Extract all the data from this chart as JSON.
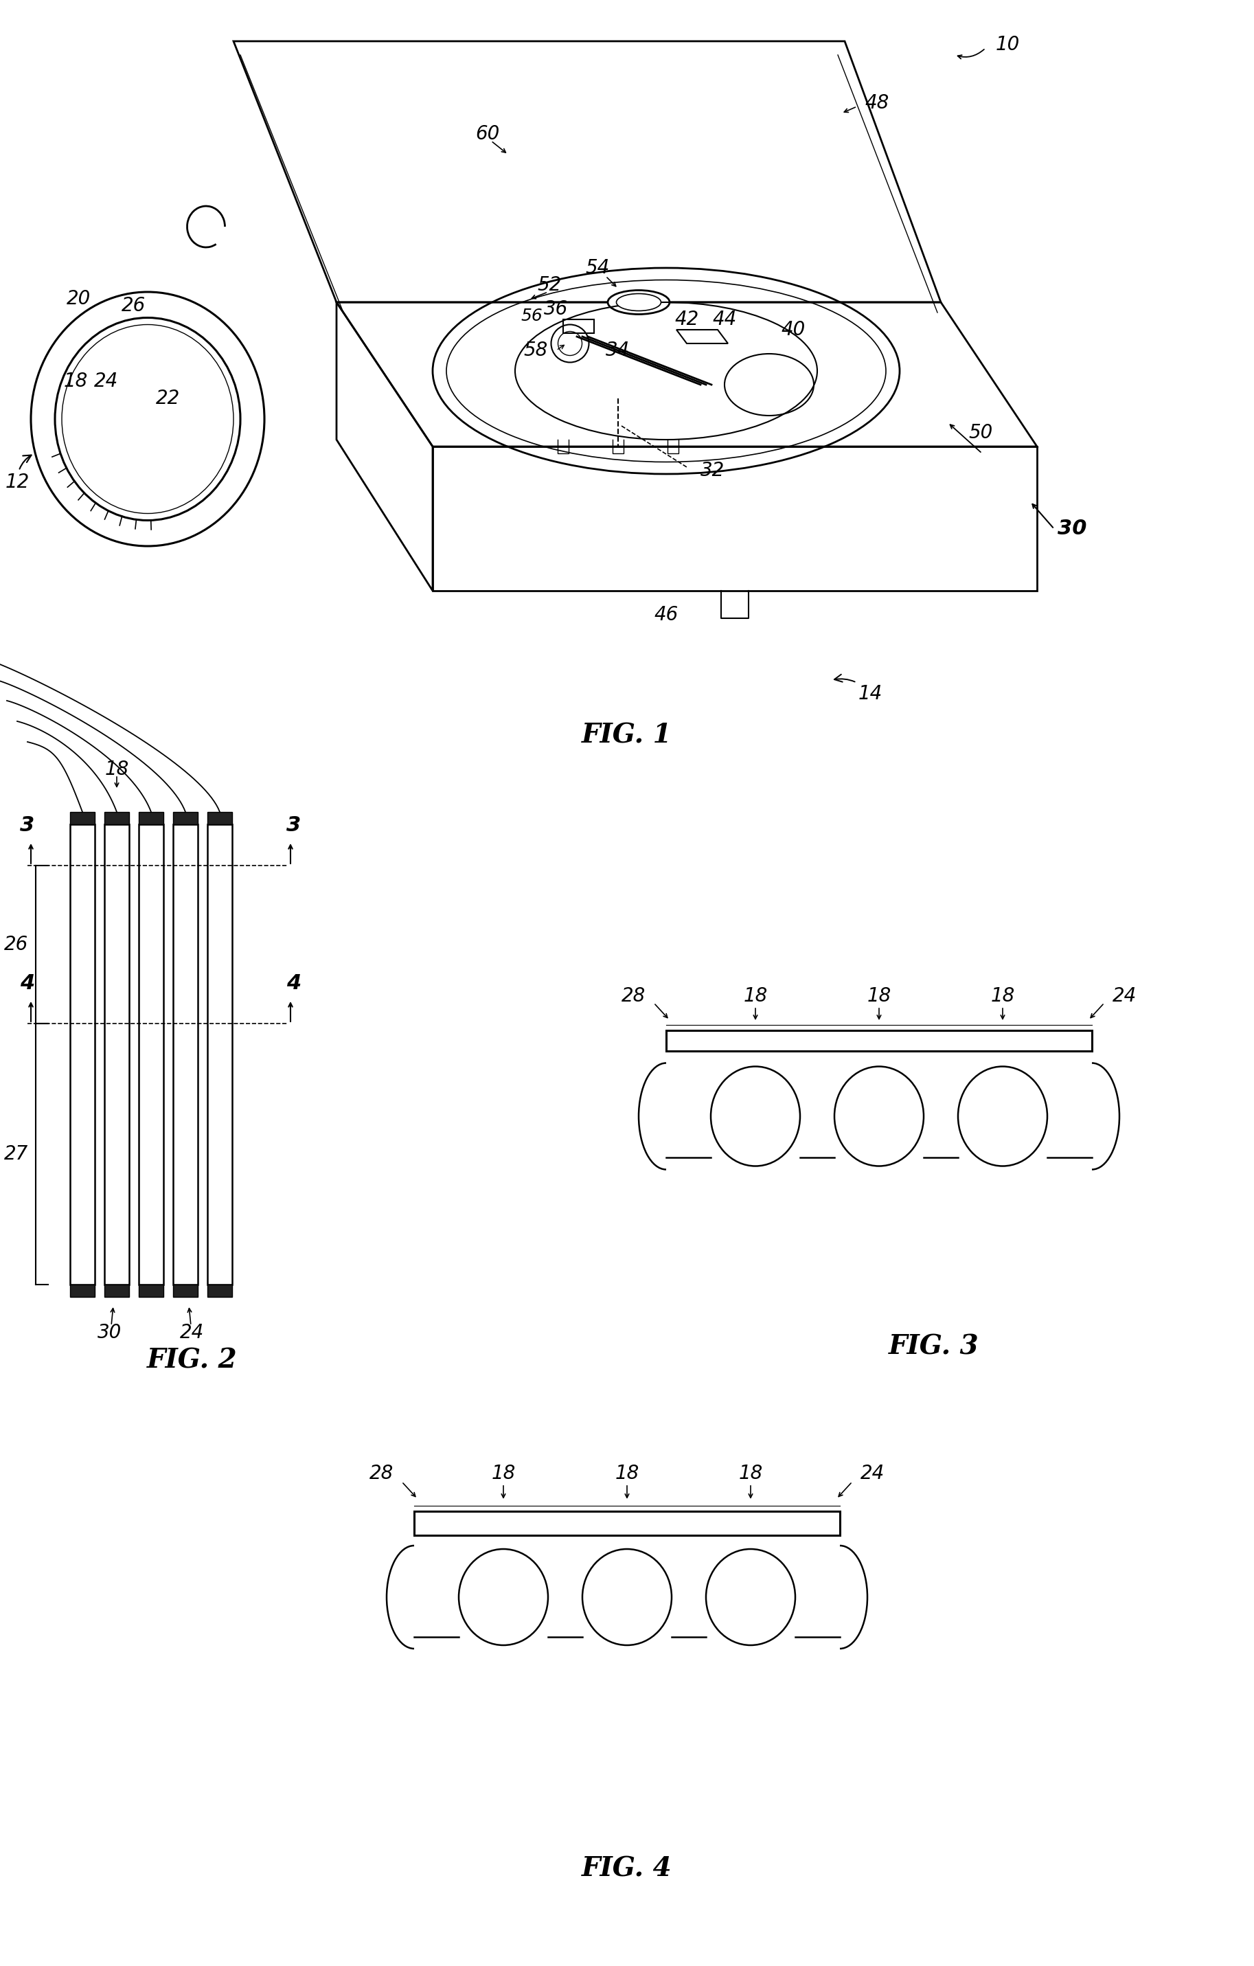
{
  "background_color": "#ffffff",
  "line_color": "#000000",
  "fig_width": 18.26,
  "fig_height": 28.62,
  "fig1_label": "FIG. 1",
  "fig2_label": "FIG. 2",
  "fig3_label": "FIG. 3",
  "fig4_label": "FIG. 4",
  "font_size_ref": 20,
  "font_size_fig": 28,
  "font_size_arrow": 22
}
